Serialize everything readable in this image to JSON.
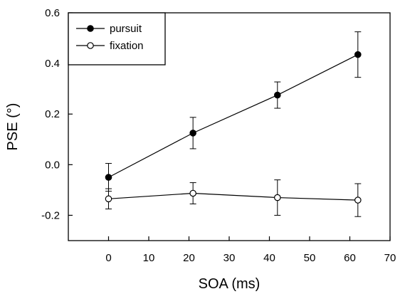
{
  "chart_data": {
    "type": "line",
    "title": "",
    "xlabel": "SOA (ms)",
    "ylabel": "PSE (°)",
    "xlim": [
      -10,
      70
    ],
    "ylim": [
      -0.3,
      0.6
    ],
    "x_ticks": [
      0,
      10,
      20,
      30,
      40,
      50,
      60,
      70
    ],
    "x_tick_labels": [
      "0",
      "10",
      "20",
      "30",
      "40",
      "50",
      "60",
      "70"
    ],
    "y_ticks": [
      -0.2,
      0.0,
      0.2,
      0.4,
      0.6
    ],
    "y_tick_labels": [
      "-0.2",
      "0.0",
      "0.2",
      "0.4",
      "0.6"
    ],
    "grid": false,
    "legend_position": "top-left",
    "series": [
      {
        "name": "pursuit",
        "marker": "filled-circle",
        "color": "#000000",
        "x": [
          0,
          21,
          42,
          62
        ],
        "y": [
          -0.05,
          0.125,
          0.275,
          0.435
        ],
        "error": [
          0.055,
          0.062,
          0.052,
          0.09
        ]
      },
      {
        "name": "fixation",
        "marker": "open-circle",
        "color": "#000000",
        "x": [
          0,
          21,
          42,
          62
        ],
        "y": [
          -0.135,
          -0.113,
          -0.13,
          -0.14
        ],
        "error": [
          0.04,
          0.042,
          0.07,
          0.065
        ]
      }
    ]
  }
}
